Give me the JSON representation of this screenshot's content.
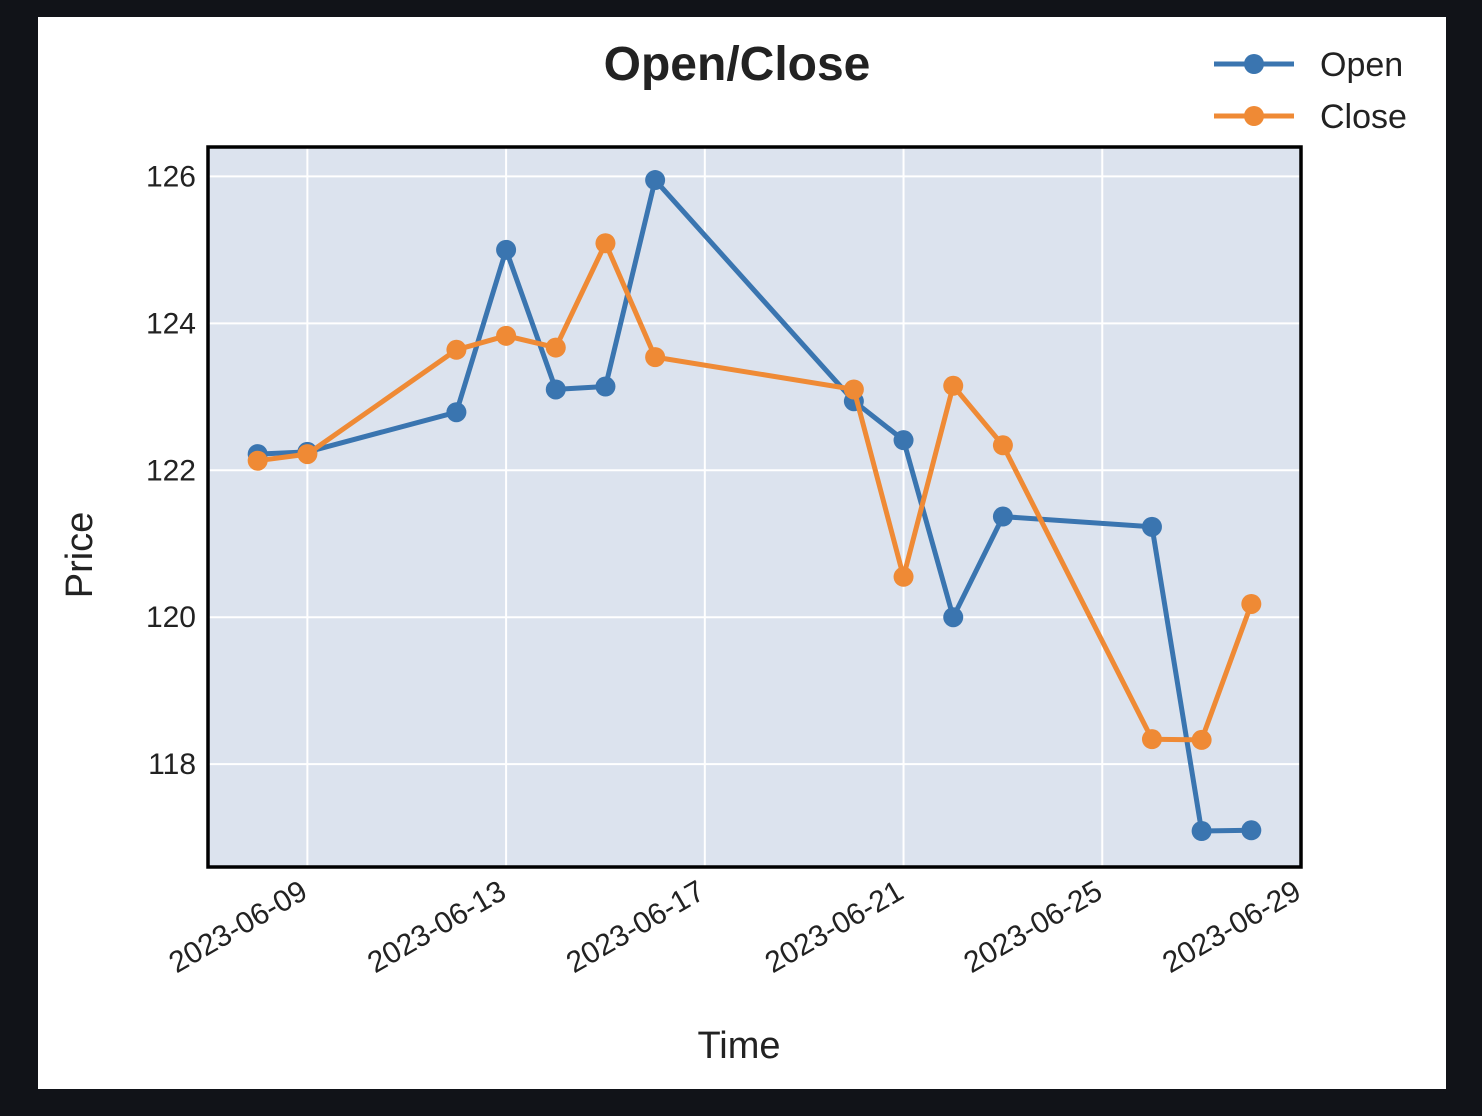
{
  "chart_data": {
    "type": "line",
    "title": "Open/Close",
    "xlabel": "Time",
    "ylabel": "Price",
    "x": [
      "2023-06-08",
      "2023-06-09",
      "2023-06-12",
      "2023-06-13",
      "2023-06-14",
      "2023-06-15",
      "2023-06-16",
      "2023-06-20",
      "2023-06-21",
      "2023-06-22",
      "2023-06-23",
      "2023-06-26",
      "2023-06-27",
      "2023-06-28"
    ],
    "series": [
      {
        "name": "Open",
        "color": "#3a75b0",
        "values": [
          122.22,
          122.25,
          122.79,
          125.0,
          123.1,
          123.14,
          125.95,
          122.94,
          122.41,
          120.0,
          121.37,
          121.23,
          117.09,
          117.1
        ]
      },
      {
        "name": "Close",
        "color": "#ef8a35",
        "values": [
          122.13,
          122.22,
          123.64,
          123.83,
          123.67,
          125.09,
          123.54,
          123.1,
          120.55,
          123.15,
          122.34,
          118.34,
          118.33,
          120.18
        ]
      }
    ],
    "xlim": [
      "2023-06-07",
      "2023-06-29"
    ],
    "ylim": [
      116.6,
      126.4
    ],
    "yticks": [
      118,
      120,
      122,
      124,
      126
    ],
    "xticks": [
      "2023-06-09",
      "2023-06-13",
      "2023-06-17",
      "2023-06-21",
      "2023-06-25",
      "2023-06-29"
    ],
    "grid": true,
    "legend_position": "top-right",
    "background": "#dce3ee"
  }
}
